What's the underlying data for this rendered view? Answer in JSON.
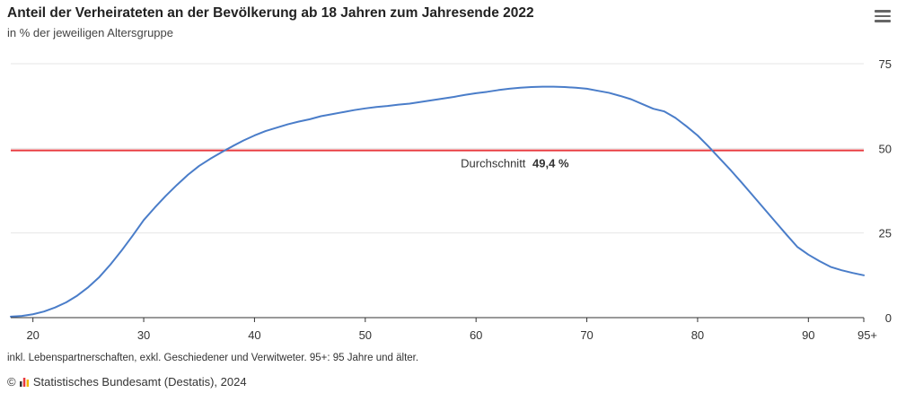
{
  "header": {
    "title": "Anteil der Verheirateten an der Bevölkerung ab 18 Jahren zum Jahresende 2022",
    "subtitle": "in % der jeweiligen Altersgruppe",
    "menu_icon": "hamburger-menu-icon"
  },
  "footer": {
    "note": "inkl. Lebenspartnerschaften, exkl. Geschiedener und Verwitweter. 95+: 95 Jahre und älter.",
    "copyright_symbol": "©",
    "source": "Statistisches Bundesamt (Destatis), 2024",
    "logo_icon": "destatis-logo-icon"
  },
  "chart_data": {
    "type": "line",
    "title": "Anteil der Verheirateten an der Bevölkerung ab 18 Jahren zum Jahresende 2022",
    "subtitle": "in % der jeweiligen Altersgruppe",
    "xlabel": "",
    "ylabel": "",
    "xlim": [
      18,
      95
    ],
    "ylim": [
      0,
      75
    ],
    "x_ticks": [
      20,
      30,
      40,
      50,
      60,
      70,
      80,
      90,
      95
    ],
    "x_tick_labels": [
      "20",
      "30",
      "40",
      "50",
      "60",
      "70",
      "80",
      "90",
      "95+"
    ],
    "y_ticks": [
      0,
      25,
      50,
      75
    ],
    "y_tick_labels": [
      "0",
      "25",
      "50",
      "75"
    ],
    "y_axis_side": "right",
    "grid": true,
    "colors": {
      "line": "#4a7dc9",
      "average": "#e8383d",
      "grid": "#e6e6e6",
      "axis": "#333333"
    },
    "series": [
      {
        "x": [
          18,
          19,
          20,
          21,
          22,
          23,
          24,
          25,
          26,
          27,
          28,
          29,
          30,
          31,
          32,
          33,
          34,
          35,
          36,
          37,
          38,
          39,
          40,
          41,
          42,
          43,
          44,
          45,
          46,
          47,
          48,
          49,
          50,
          51,
          52,
          53,
          54,
          55,
          56,
          57,
          58,
          59,
          60,
          61,
          62,
          63,
          64,
          65,
          66,
          67,
          68,
          69,
          70,
          71,
          72,
          73,
          74,
          75,
          76,
          77,
          78,
          79,
          80,
          81,
          82,
          83,
          84,
          85,
          86,
          87,
          88,
          89,
          90,
          91,
          92,
          93,
          94,
          95
        ],
        "values": [
          0.3,
          0.5,
          1.0,
          1.8,
          3.0,
          4.5,
          6.5,
          9.0,
          12.0,
          15.7,
          19.8,
          24.2,
          28.8,
          32.5,
          36.0,
          39.2,
          42.2,
          44.8,
          46.9,
          48.8,
          50.6,
          52.3,
          53.8,
          55.1,
          56.1,
          57.1,
          57.9,
          58.6,
          59.5,
          60.1,
          60.7,
          61.3,
          61.8,
          62.2,
          62.5,
          62.9,
          63.2,
          63.7,
          64.2,
          64.7,
          65.2,
          65.8,
          66.3,
          66.7,
          67.2,
          67.6,
          67.9,
          68.1,
          68.2,
          68.2,
          68.1,
          67.9,
          67.6,
          67.0,
          66.4,
          65.5,
          64.5,
          63.1,
          61.7,
          60.9,
          59.0,
          56.5,
          53.8,
          50.5,
          47.0,
          43.5,
          39.8,
          36.0,
          32.2,
          28.4,
          24.6,
          20.9,
          18.6,
          16.7,
          15.0,
          14.0,
          13.2,
          12.5
        ]
      }
    ],
    "average": {
      "value": 49.4,
      "label_prefix": "Durchschnitt",
      "label_value": "49,4 %"
    }
  }
}
